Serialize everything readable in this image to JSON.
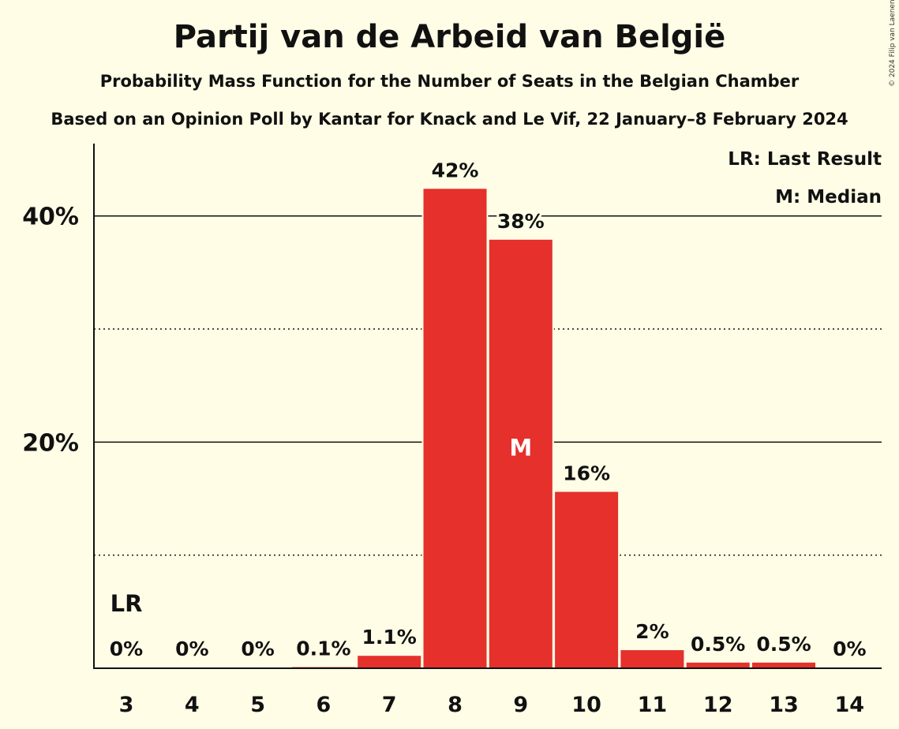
{
  "header": {
    "title": "Partij van de Arbeid van België",
    "subtitle": "Probability Mass Function for the Number of Seats in the Belgian Chamber",
    "subtitle2": "Based on an Opinion Poll by Kantar for Knack and Le Vif, 22 January–8 February 2024",
    "copyright": "© 2024 Filip van Laenen"
  },
  "legend": {
    "last_result": "LR: Last Result",
    "median": "M: Median"
  },
  "chart_data": {
    "type": "bar",
    "categories": [
      "3",
      "4",
      "5",
      "6",
      "7",
      "8",
      "9",
      "10",
      "11",
      "12",
      "13",
      "14"
    ],
    "values": [
      0,
      0,
      0,
      0.1,
      1.1,
      42.4,
      37.9,
      15.6,
      1.6,
      0.5,
      0.5,
      0
    ],
    "labels": [
      "0%",
      "0%",
      "0%",
      "0.1%",
      "1.1%",
      "42%",
      "38%",
      "16%",
      "2%",
      "0.5%",
      "0.5%",
      "0%"
    ],
    "ylim": [
      0,
      46.4
    ],
    "yticks": [
      {
        "value": 20,
        "label": "20%"
      },
      {
        "value": 40,
        "label": "40%"
      }
    ],
    "minor_gridlines": [
      10,
      30
    ],
    "last_result": {
      "category": "3",
      "label": "LR"
    },
    "median": {
      "category": "9",
      "label": "M"
    },
    "legend_position": "top-right",
    "colors": {
      "bar": "#E5302B",
      "background": "#FFFDE6",
      "text": "#111111",
      "median_label": "#FFFFFF"
    }
  }
}
